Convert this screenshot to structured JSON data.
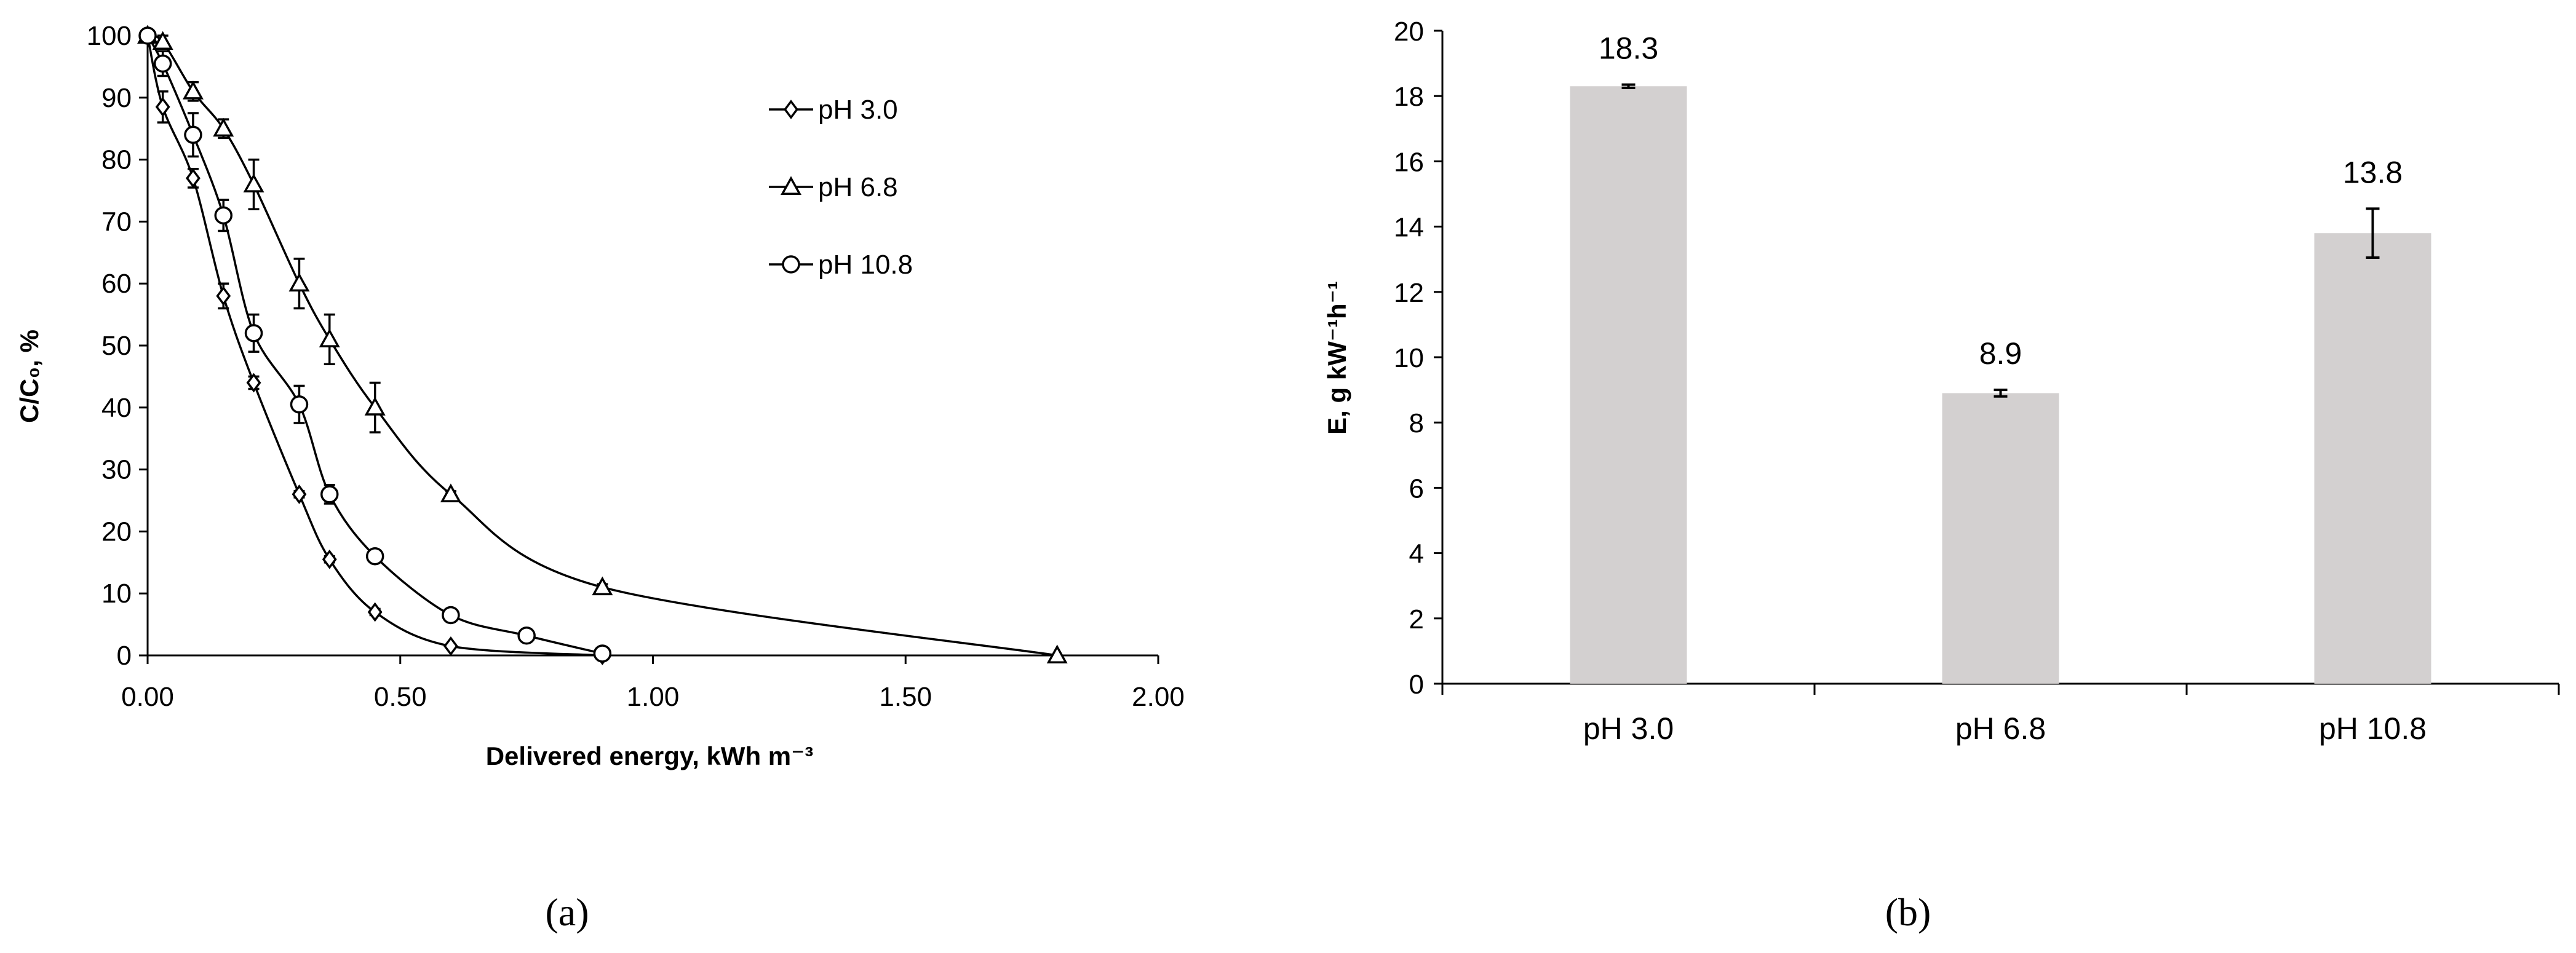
{
  "chart_data": [
    {
      "type": "line",
      "panel_label": "(a)",
      "xlabel": "Delivered energy, kWh m⁻³",
      "ylabel": "C/C₀, %",
      "xlim": [
        0,
        2.0
      ],
      "ylim": [
        0,
        100
      ],
      "x_ticks": [
        "0.00",
        "0.50",
        "1.00",
        "1.50",
        "2.00"
      ],
      "y_ticks": [
        "0",
        "10",
        "20",
        "30",
        "40",
        "50",
        "60",
        "70",
        "80",
        "90",
        "100"
      ],
      "grid": false,
      "legend_position": "top-right",
      "series": [
        {
          "name": "pH 3.0",
          "marker": "diamond",
          "points": [
            {
              "x": 0.0,
              "y": 100,
              "err": 0
            },
            {
              "x": 0.03,
              "y": 88.5,
              "err": 2.5
            },
            {
              "x": 0.09,
              "y": 77,
              "err": 1.5
            },
            {
              "x": 0.15,
              "y": 58,
              "err": 2
            },
            {
              "x": 0.21,
              "y": 44,
              "err": 1
            },
            {
              "x": 0.3,
              "y": 26,
              "err": 0.5
            },
            {
              "x": 0.36,
              "y": 15.5,
              "err": 0.5
            },
            {
              "x": 0.45,
              "y": 7,
              "err": 0.5
            },
            {
              "x": 0.6,
              "y": 1.5,
              "err": 0
            },
            {
              "x": 0.9,
              "y": 0,
              "err": 0
            }
          ]
        },
        {
          "name": "pH 6.8",
          "marker": "triangle",
          "points": [
            {
              "x": 0.0,
              "y": 100,
              "err": 0
            },
            {
              "x": 0.03,
              "y": 99,
              "err": 1
            },
            {
              "x": 0.09,
              "y": 91,
              "err": 1.5
            },
            {
              "x": 0.15,
              "y": 85,
              "err": 1.5
            },
            {
              "x": 0.21,
              "y": 76,
              "err": 4
            },
            {
              "x": 0.3,
              "y": 60,
              "err": 4
            },
            {
              "x": 0.36,
              "y": 51,
              "err": 4
            },
            {
              "x": 0.45,
              "y": 40,
              "err": 4
            },
            {
              "x": 0.6,
              "y": 26,
              "err": 0.5
            },
            {
              "x": 0.9,
              "y": 11,
              "err": 0.5
            },
            {
              "x": 1.8,
              "y": 0,
              "err": 0
            }
          ]
        },
        {
          "name": "pH 10.8",
          "marker": "circle",
          "points": [
            {
              "x": 0.0,
              "y": 100,
              "err": 0
            },
            {
              "x": 0.03,
              "y": 95.5,
              "err": 2
            },
            {
              "x": 0.09,
              "y": 84,
              "err": 3.5
            },
            {
              "x": 0.15,
              "y": 71,
              "err": 2.5
            },
            {
              "x": 0.21,
              "y": 52,
              "err": 3
            },
            {
              "x": 0.3,
              "y": 40.5,
              "err": 3
            },
            {
              "x": 0.36,
              "y": 26,
              "err": 1.5
            },
            {
              "x": 0.45,
              "y": 16,
              "err": 0.5
            },
            {
              "x": 0.6,
              "y": 6.5,
              "err": 0
            },
            {
              "x": 0.75,
              "y": 3.2,
              "err": 0
            },
            {
              "x": 0.9,
              "y": 0.3,
              "err": 0
            }
          ]
        }
      ]
    },
    {
      "type": "bar",
      "panel_label": "(b)",
      "ylabel": "E, g kW⁻¹h⁻¹",
      "ylim": [
        0,
        20
      ],
      "y_ticks": [
        "0",
        "2",
        "4",
        "6",
        "8",
        "10",
        "12",
        "14",
        "16",
        "18",
        "20"
      ],
      "categories": [
        "pH 3.0",
        "pH 6.8",
        "pH 10.8"
      ],
      "values": [
        18.3,
        8.9,
        13.8
      ],
      "value_labels": [
        "18.3",
        "8.9",
        "13.8"
      ],
      "errors": [
        0.05,
        0.1,
        0.75
      ],
      "grid": false,
      "bar_color": "#d3d0d0"
    }
  ]
}
